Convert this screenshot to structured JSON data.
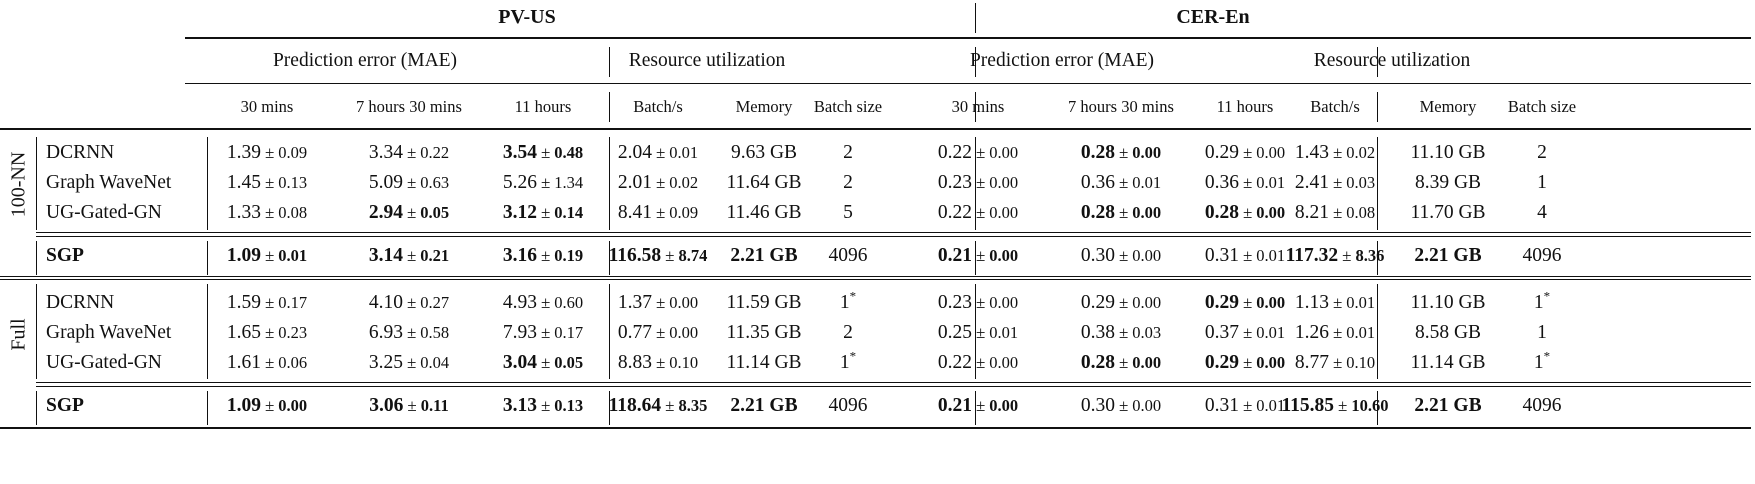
{
  "header": {
    "datasets": [
      "PV-US",
      "CER-En"
    ],
    "groups": [
      "Prediction error (MAE)",
      "Resource utilization",
      "Prediction error (MAE)",
      "Resource utilization"
    ],
    "columns": [
      "30 mins",
      "7 hours 30 mins",
      "11 hours",
      "Batch/s",
      "Memory",
      "Batch size",
      "30 mins",
      "7 hours 30 mins",
      "11 hours",
      "Batch/s",
      "Memory",
      "Batch size"
    ]
  },
  "sections": [
    {
      "label": "100-NN",
      "rows": [
        {
          "model": "DCRNN",
          "bold": false,
          "cells": [
            {
              "v": "1.39",
              "s": "0.09",
              "b": false
            },
            {
              "v": "3.34",
              "s": "0.22",
              "b": false
            },
            {
              "v": "3.54",
              "s": "0.48",
              "b": true
            },
            {
              "v": "2.04",
              "s": "0.01",
              "b": false
            },
            {
              "m": "9.63 GB",
              "b": false
            },
            {
              "m": "2",
              "b": false
            },
            {
              "v": "0.22",
              "s": "0.00",
              "b": false
            },
            {
              "v": "0.28",
              "s": "0.00",
              "b": true
            },
            {
              "v": "0.29",
              "s": "0.00",
              "b": false
            },
            {
              "v": "1.43",
              "s": "0.02",
              "b": false
            },
            {
              "m": "11.10 GB",
              "b": false
            },
            {
              "m": "2",
              "b": false
            }
          ]
        },
        {
          "model": "Graph WaveNet",
          "bold": false,
          "cells": [
            {
              "v": "1.45",
              "s": "0.13",
              "b": false
            },
            {
              "v": "5.09",
              "s": "0.63",
              "b": false
            },
            {
              "v": "5.26",
              "s": "1.34",
              "b": false
            },
            {
              "v": "2.01",
              "s": "0.02",
              "b": false
            },
            {
              "m": "11.64 GB",
              "b": false
            },
            {
              "m": "2",
              "b": false
            },
            {
              "v": "0.23",
              "s": "0.00",
              "b": false
            },
            {
              "v": "0.36",
              "s": "0.01",
              "b": false
            },
            {
              "v": "0.36",
              "s": "0.01",
              "b": false
            },
            {
              "v": "2.41",
              "s": "0.03",
              "b": false
            },
            {
              "m": "8.39 GB",
              "b": false
            },
            {
              "m": "1",
              "b": false
            }
          ]
        },
        {
          "model": "UG-Gated-GN",
          "bold": false,
          "cells": [
            {
              "v": "1.33",
              "s": "0.08",
              "b": false
            },
            {
              "v": "2.94",
              "s": "0.05",
              "b": true
            },
            {
              "v": "3.12",
              "s": "0.14",
              "b": true
            },
            {
              "v": "8.41",
              "s": "0.09",
              "b": false
            },
            {
              "m": "11.46 GB",
              "b": false
            },
            {
              "m": "5",
              "b": false
            },
            {
              "v": "0.22",
              "s": "0.00",
              "b": false
            },
            {
              "v": "0.28",
              "s": "0.00",
              "b": true
            },
            {
              "v": "0.28",
              "s": "0.00",
              "b": true
            },
            {
              "v": "8.21",
              "s": "0.08",
              "b": false
            },
            {
              "m": "11.70 GB",
              "b": false
            },
            {
              "m": "4",
              "b": false
            }
          ]
        }
      ],
      "sgp": {
        "model": "SGP",
        "bold": true,
        "cells": [
          {
            "v": "1.09",
            "s": "0.01",
            "b": true
          },
          {
            "v": "3.14",
            "s": "0.21",
            "b": true
          },
          {
            "v": "3.16",
            "s": "0.19",
            "b": true
          },
          {
            "v": "116.58",
            "s": "8.74",
            "b": true
          },
          {
            "m": "2.21 GB",
            "b": true
          },
          {
            "m": "4096",
            "b": false
          },
          {
            "v": "0.21",
            "s": "0.00",
            "b": true
          },
          {
            "v": "0.30",
            "s": "0.00",
            "b": false
          },
          {
            "v": "0.31",
            "s": "0.01",
            "b": false
          },
          {
            "v": "117.32",
            "s": "8.36",
            "b": true
          },
          {
            "m": "2.21 GB",
            "b": true
          },
          {
            "m": "4096",
            "b": false
          }
        ]
      }
    },
    {
      "label": "Full",
      "rows": [
        {
          "model": "DCRNN",
          "bold": false,
          "cells": [
            {
              "v": "1.59",
              "s": "0.17",
              "b": false
            },
            {
              "v": "4.10",
              "s": "0.27",
              "b": false
            },
            {
              "v": "4.93",
              "s": "0.60",
              "b": false
            },
            {
              "v": "1.37",
              "s": "0.00",
              "b": false
            },
            {
              "m": "11.59 GB",
              "b": false
            },
            {
              "m": "1",
              "sup": "*",
              "b": false
            },
            {
              "v": "0.23",
              "s": "0.00",
              "b": false
            },
            {
              "v": "0.29",
              "s": "0.00",
              "b": false
            },
            {
              "v": "0.29",
              "s": "0.00",
              "b": true
            },
            {
              "v": "1.13",
              "s": "0.01",
              "b": false
            },
            {
              "m": "11.10 GB",
              "b": false
            },
            {
              "m": "1",
              "sup": "*",
              "b": false
            }
          ]
        },
        {
          "model": "Graph WaveNet",
          "bold": false,
          "cells": [
            {
              "v": "1.65",
              "s": "0.23",
              "b": false
            },
            {
              "v": "6.93",
              "s": "0.58",
              "b": false
            },
            {
              "v": "7.93",
              "s": "0.17",
              "b": false
            },
            {
              "v": "0.77",
              "s": "0.00",
              "b": false
            },
            {
              "m": "11.35 GB",
              "b": false
            },
            {
              "m": "2",
              "b": false
            },
            {
              "v": "0.25",
              "s": "0.01",
              "b": false
            },
            {
              "v": "0.38",
              "s": "0.03",
              "b": false
            },
            {
              "v": "0.37",
              "s": "0.01",
              "b": false
            },
            {
              "v": "1.26",
              "s": "0.01",
              "b": false
            },
            {
              "m": "8.58 GB",
              "b": false
            },
            {
              "m": "1",
              "b": false
            }
          ]
        },
        {
          "model": "UG-Gated-GN",
          "bold": false,
          "cells": [
            {
              "v": "1.61",
              "s": "0.06",
              "b": false
            },
            {
              "v": "3.25",
              "s": "0.04",
              "b": false
            },
            {
              "v": "3.04",
              "s": "0.05",
              "b": true
            },
            {
              "v": "8.83",
              "s": "0.10",
              "b": false
            },
            {
              "m": "11.14 GB",
              "b": false
            },
            {
              "m": "1",
              "sup": "*",
              "b": false
            },
            {
              "v": "0.22",
              "s": "0.00",
              "b": false
            },
            {
              "v": "0.28",
              "s": "0.00",
              "b": true
            },
            {
              "v": "0.29",
              "s": "0.00",
              "b": true
            },
            {
              "v": "8.77",
              "s": "0.10",
              "b": false
            },
            {
              "m": "11.14 GB",
              "b": false
            },
            {
              "m": "1",
              "sup": "*",
              "b": false
            }
          ]
        }
      ],
      "sgp": {
        "model": "SGP",
        "bold": true,
        "cells": [
          {
            "v": "1.09",
            "s": "0.00",
            "b": true
          },
          {
            "v": "3.06",
            "s": "0.11",
            "b": true
          },
          {
            "v": "3.13",
            "s": "0.13",
            "b": true
          },
          {
            "v": "118.64",
            "s": "8.35",
            "b": true
          },
          {
            "m": "2.21 GB",
            "b": true
          },
          {
            "m": "4096",
            "b": false
          },
          {
            "v": "0.21",
            "s": "0.00",
            "b": true
          },
          {
            "v": "0.30",
            "s": "0.00",
            "b": false
          },
          {
            "v": "0.31",
            "s": "0.01",
            "b": false
          },
          {
            "v": "115.85",
            "s": "10.60",
            "b": true
          },
          {
            "m": "2.21 GB",
            "b": true
          },
          {
            "m": "4096",
            "b": false
          }
        ]
      }
    }
  ],
  "symbols": {
    "pm": "±"
  }
}
